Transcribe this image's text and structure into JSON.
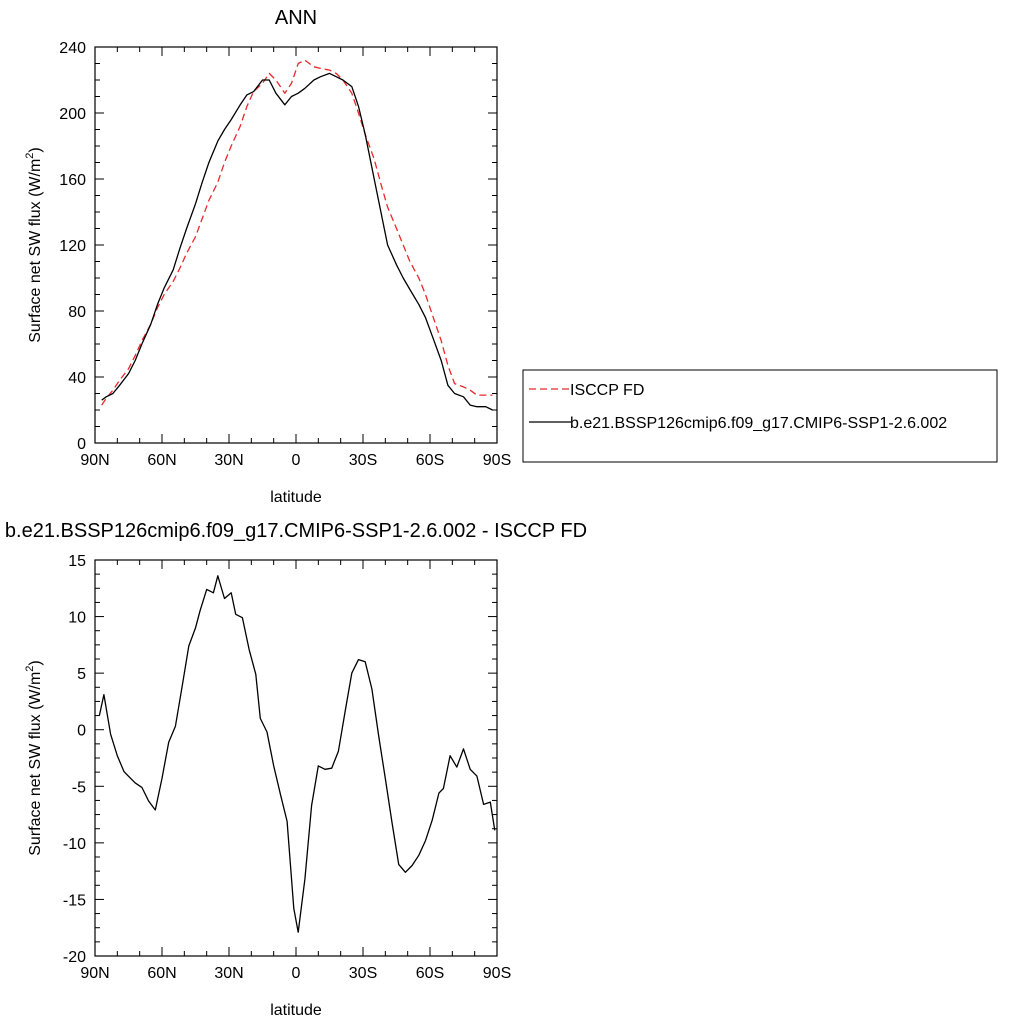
{
  "colors": {
    "model": "#000000",
    "obs": "#e8292b",
    "frame": "#000000",
    "background": "#ffffff"
  },
  "chart_data": [
    {
      "type": "line",
      "title": "ANN",
      "xlabel": "latitude",
      "ylabel": "Surface net SW flux (W/m",
      "ylabel_sup": "2",
      "ylabel_end": ")",
      "xlim": [
        -90,
        90
      ],
      "ylim": [
        0,
        240
      ],
      "xticks": [
        -90,
        -60,
        -30,
        0,
        30,
        60,
        90
      ],
      "xtick_labels": [
        "90N",
        "60N",
        "30N",
        "0",
        "30S",
        "60S",
        "90S"
      ],
      "yticks": [
        0,
        40,
        80,
        120,
        160,
        200,
        240
      ],
      "ytick_labels": [
        "0",
        "40",
        "80",
        "120",
        "160",
        "200",
        "240"
      ],
      "grid": false,
      "legend_position": "right",
      "series": [
        {
          "name": "ISCCP FD",
          "style": "dashed",
          "color": "#e8292b",
          "x": [
            -87,
            -85,
            -82,
            -79,
            -75,
            -72,
            -69,
            -65,
            -62,
            -59,
            -55,
            -52,
            -49,
            -45,
            -42,
            -39,
            -35,
            -32,
            -29,
            -25,
            -22,
            -19,
            -15,
            -12,
            -9,
            -5,
            -2,
            1,
            4,
            8,
            11,
            15,
            18,
            21,
            25,
            28,
            31,
            35,
            38,
            41,
            45,
            48,
            51,
            55,
            58,
            61,
            65,
            68,
            71,
            75,
            78,
            81,
            85,
            88
          ],
          "y": [
            23,
            27,
            32,
            38,
            45,
            53,
            62,
            72,
            82,
            90,
            98,
            106,
            115,
            125,
            136,
            147,
            158,
            170,
            180,
            192,
            204,
            213,
            218,
            224,
            220,
            212,
            218,
            230,
            232,
            228,
            227,
            226,
            224,
            220,
            212,
            200,
            187,
            172,
            157,
            143,
            130,
            120,
            110,
            100,
            90,
            78,
            62,
            47,
            36,
            34,
            32,
            29,
            29,
            29
          ]
        },
        {
          "name": "b.e21.BSSP126cmip6.f09_g17.CMIP6-SSP1-2.6.002",
          "style": "solid",
          "color": "#000000",
          "x": [
            -87,
            -85,
            -82,
            -79,
            -75,
            -72,
            -69,
            -65,
            -62,
            -59,
            -55,
            -52,
            -49,
            -45,
            -42,
            -39,
            -35,
            -32,
            -29,
            -25,
            -22,
            -19,
            -15,
            -12,
            -9,
            -5,
            -2,
            1,
            4,
            8,
            11,
            15,
            18,
            21,
            25,
            28,
            31,
            35,
            38,
            41,
            45,
            48,
            51,
            55,
            58,
            61,
            65,
            68,
            71,
            75,
            78,
            81,
            85,
            88
          ],
          "y": [
            26,
            28,
            30,
            35,
            42,
            50,
            60,
            72,
            84,
            94,
            105,
            118,
            130,
            145,
            158,
            170,
            183,
            190,
            196,
            205,
            211,
            213,
            220,
            220,
            212,
            205,
            210,
            212,
            215,
            220,
            222,
            224,
            222,
            220,
            216,
            204,
            187,
            160,
            140,
            120,
            108,
            100,
            93,
            84,
            76,
            65,
            50,
            35,
            30,
            28,
            23,
            22,
            22,
            20
          ]
        }
      ]
    },
    {
      "type": "line",
      "title": "b.e21.BSSP126cmip6.f09_g17.CMIP6-SSP1-2.6.002 - ISCCP FD",
      "xlabel": "latitude",
      "ylabel": "Surface net SW flux (W/m",
      "ylabel_sup": "2",
      "ylabel_end": ")",
      "xlim": [
        -90,
        90
      ],
      "ylim": [
        -20,
        15
      ],
      "xticks": [
        -90,
        -60,
        -30,
        0,
        30,
        60,
        90
      ],
      "xtick_labels": [
        "90N",
        "60N",
        "30N",
        "0",
        "30S",
        "60S",
        "90S"
      ],
      "yticks": [
        -20,
        -15,
        -10,
        -5,
        0,
        5,
        10,
        15
      ],
      "ytick_labels": [
        "-20",
        "-15",
        "-10",
        "-5",
        "0",
        "5",
        "10",
        "15"
      ],
      "grid": false,
      "series": [
        {
          "color": "#000000",
          "style": "solid",
          "x": [
            -88,
            -86,
            -83,
            -80,
            -77,
            -74,
            -72,
            -69,
            -66,
            -63,
            -60,
            -57,
            -54,
            -51,
            -48,
            -45,
            -43,
            -40,
            -37,
            -35,
            -32,
            -29,
            -27,
            -24,
            -21,
            -18,
            -16,
            -13,
            -10,
            -7,
            -4,
            -1,
            1,
            4,
            7,
            10,
            13,
            16,
            19,
            22,
            25,
            28,
            31,
            34,
            37,
            40,
            43,
            46,
            49,
            52,
            55,
            58,
            61,
            64,
            66,
            69,
            72,
            75,
            78,
            81,
            84,
            87,
            89
          ],
          "y": [
            1.3,
            3.1,
            -0.4,
            -2.3,
            -3.7,
            -4.3,
            -4.7,
            -5.1,
            -6.3,
            -7.1,
            -4.3,
            -1.1,
            0.3,
            3.8,
            7.4,
            9,
            10.5,
            12.4,
            12.1,
            13.6,
            11.6,
            12.1,
            10.2,
            9.9,
            7.1,
            4.9,
            1.0,
            -0.2,
            -3.2,
            -5.7,
            -8.1,
            -15.8,
            -17.9,
            -13.2,
            -6.7,
            -3.2,
            -3.5,
            -3.4,
            -1.9,
            1.6,
            5.0,
            6.2,
            6.0,
            3.6,
            -0.5,
            -4.3,
            -8.2,
            -11.9,
            -12.6,
            -12.0,
            -11.1,
            -9.8,
            -8.0,
            -5.6,
            -5.2,
            -2.3,
            -3.3,
            -1.7,
            -3.5,
            -4.1,
            -6.6,
            -6.4,
            -8.9
          ]
        }
      ]
    }
  ]
}
